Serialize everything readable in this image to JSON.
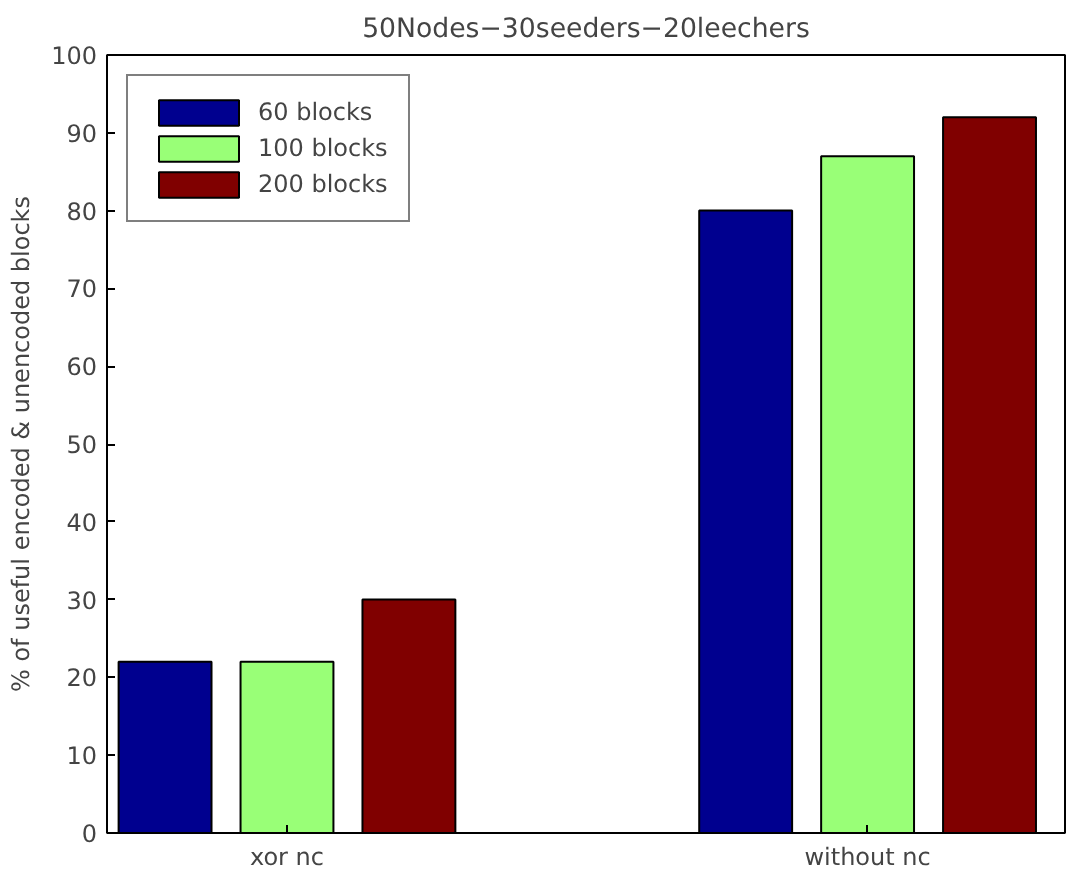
{
  "chart_data": {
    "type": "bar",
    "title": "50Nodes−30seeders−20leechers",
    "ylabel": "% of useful encoded & unencoded blocks",
    "categories": [
      "xor nc",
      "without nc"
    ],
    "series": [
      {
        "name": "60 blocks",
        "color": "#00008f",
        "values": [
          22,
          80
        ]
      },
      {
        "name": "100 blocks",
        "color": "#99ff77",
        "values": [
          22,
          87
        ]
      },
      {
        "name": "200 blocks",
        "color": "#800000",
        "values": [
          30,
          92
        ]
      }
    ],
    "ylim": [
      0,
      100
    ],
    "yticks": [
      0,
      10,
      20,
      30,
      40,
      50,
      60,
      70,
      80,
      90,
      100
    ],
    "grid": false,
    "legend": "top left"
  }
}
